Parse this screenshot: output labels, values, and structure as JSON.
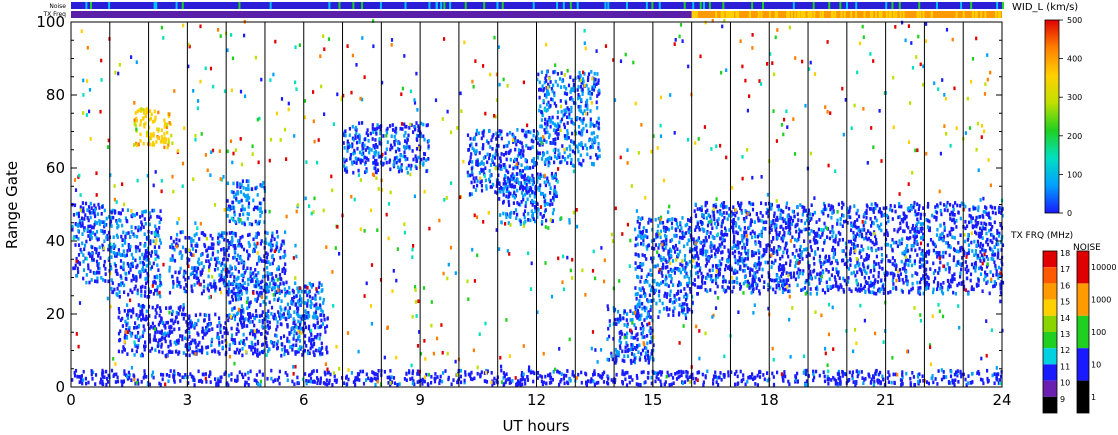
{
  "chart_data": {
    "type": "heatmap",
    "xlabel": "UT hours",
    "ylabel": "Range Gate",
    "xlim": [
      0,
      24
    ],
    "ylim": [
      0,
      100
    ],
    "xticks": [
      0,
      3,
      6,
      9,
      12,
      15,
      18,
      21,
      24
    ],
    "yticks": [
      0,
      20,
      40,
      60,
      80,
      100
    ],
    "hour_gridlines": [
      1,
      2,
      3,
      4,
      5,
      6,
      7,
      8,
      9,
      10,
      11,
      12,
      13,
      14,
      15,
      16,
      17,
      18,
      19,
      20,
      21,
      22,
      23
    ],
    "top_bars": {
      "noise_label": "Noise",
      "txfreq_label": "TX Freq",
      "noise_color": "#2a1fd6",
      "txfreq_segments": [
        {
          "from": 0,
          "to": 16,
          "color": "#5a1fa8"
        },
        {
          "from": 16,
          "to": 24,
          "color": "#ff9a00"
        }
      ]
    },
    "velocity_scale": {
      "title": "WID_L (km/s)",
      "ticks": [
        0,
        100,
        200,
        300,
        400,
        500
      ],
      "stops": [
        "#1a1aff",
        "#00a0ff",
        "#00e0c0",
        "#20d020",
        "#c0e000",
        "#ffd000",
        "#ff8000",
        "#e00000"
      ]
    },
    "freq_scale": {
      "title": "TX FRQ (MHz)",
      "ticks": [
        "18",
        "17",
        "16",
        "15",
        "14",
        "13",
        "12",
        "11",
        "10",
        "9"
      ],
      "colors": [
        "#e00000",
        "#ff5a00",
        "#ff9a00",
        "#ffd000",
        "#8ad400",
        "#20d020",
        "#00d0e0",
        "#1a1aff",
        "#6a1fb0",
        "#000000"
      ]
    },
    "noise_scale": {
      "title": "NOISE",
      "ticks": [
        "10000",
        "1000",
        "100",
        "10",
        "1"
      ],
      "colors": [
        "#e00000",
        "#ff9a00",
        "#20d020",
        "#1a1aff",
        "#000000"
      ]
    },
    "echo_regions": [
      {
        "t0": 0.0,
        "t1": 1.0,
        "g0": 28,
        "g1": 50,
        "speed": 40
      },
      {
        "t0": 1.0,
        "t1": 2.3,
        "g0": 24,
        "g1": 48,
        "speed": 50
      },
      {
        "t0": 1.6,
        "t1": 2.6,
        "g0": 65,
        "g1": 76,
        "speed": 330
      },
      {
        "t0": 1.2,
        "t1": 3.0,
        "g0": 8,
        "g1": 22,
        "speed": 25
      },
      {
        "t0": 3.0,
        "t1": 6.6,
        "g0": 8,
        "g1": 20,
        "speed": 30
      },
      {
        "t0": 2.5,
        "t1": 5.5,
        "g0": 25,
        "g1": 42,
        "speed": 45
      },
      {
        "t0": 4.0,
        "t1": 6.5,
        "g0": 18,
        "g1": 28,
        "speed": 60
      },
      {
        "t0": 4.0,
        "t1": 5.0,
        "g0": 44,
        "g1": 56,
        "speed": 70
      },
      {
        "t0": 7.0,
        "t1": 9.2,
        "g0": 58,
        "g1": 72,
        "speed": 40
      },
      {
        "t0": 10.2,
        "t1": 12.0,
        "g0": 52,
        "g1": 70,
        "speed": 40
      },
      {
        "t0": 11.0,
        "t1": 12.5,
        "g0": 44,
        "g1": 58,
        "speed": 55
      },
      {
        "t0": 12.0,
        "t1": 13.6,
        "g0": 60,
        "g1": 86,
        "speed": 60
      },
      {
        "t0": 13.8,
        "t1": 15.0,
        "g0": 6,
        "g1": 22,
        "speed": 40
      },
      {
        "t0": 14.5,
        "t1": 16.0,
        "g0": 18,
        "g1": 46,
        "speed": 50
      },
      {
        "t0": 16.0,
        "t1": 24.0,
        "g0": 25,
        "g1": 50,
        "speed": 35
      },
      {
        "t0": 0.0,
        "t1": 24.0,
        "g0": 0,
        "g1": 4,
        "speed": 20
      }
    ]
  }
}
